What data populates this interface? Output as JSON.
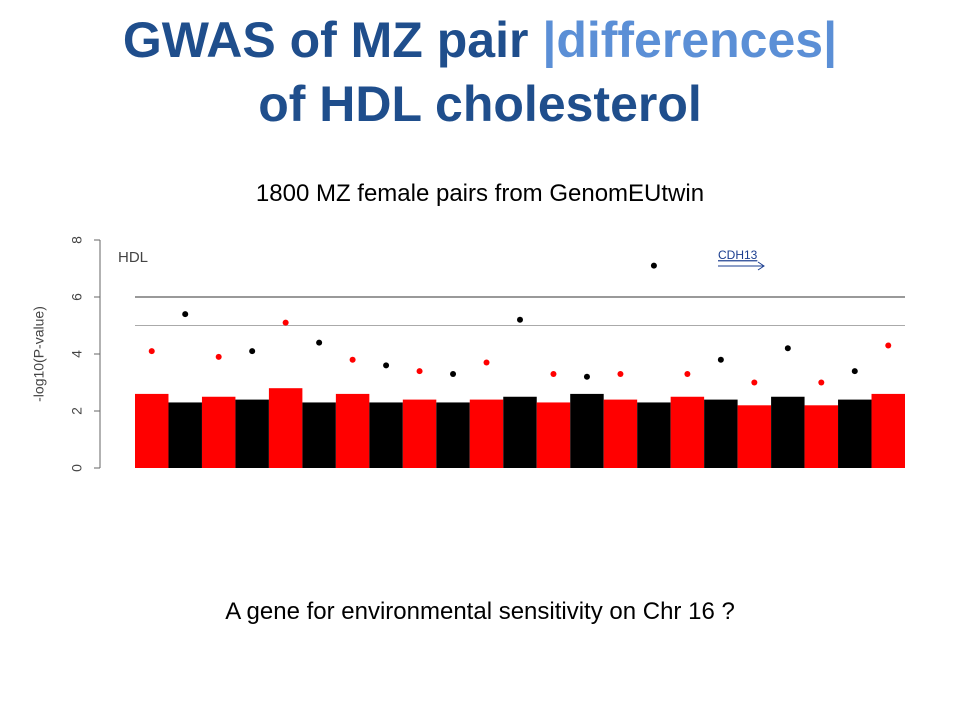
{
  "title": {
    "lines": [
      [
        "GWAS of MZ pair ",
        "|differences|"
      ],
      [
        "of HDL cholesterol"
      ]
    ]
  },
  "subtitle": "1800 MZ female pairs from GenomEUtwin",
  "caption": "A gene for environmental sensitivity on Chr 16 ?",
  "chart_data": {
    "type": "manhattan",
    "ylabel": "-log10(P-value)",
    "annotations": [
      "HDL",
      "CDH13"
    ],
    "ylim": [
      0,
      8
    ],
    "yticks": [
      0,
      2,
      4,
      6,
      8
    ],
    "hlines": [
      6,
      5
    ],
    "categories": [
      null,
      null,
      null,
      null,
      null,
      null,
      null,
      null,
      null,
      null,
      null,
      null,
      null,
      null,
      null,
      null,
      null,
      null,
      null,
      null,
      null,
      null,
      null
    ],
    "colors": [
      "#ff0000",
      "#000000"
    ],
    "values": [
      2.6,
      2.3,
      2.5,
      2.4,
      2.8,
      2.3,
      2.6,
      2.3,
      2.4,
      2.3,
      2.4,
      2.5,
      2.3,
      2.6,
      2.4,
      2.3,
      2.5,
      2.4,
      2.2,
      2.5,
      2.2,
      2.4,
      2.6
    ],
    "peaks": [
      4.1,
      5.4,
      3.9,
      4.1,
      5.1,
      4.4,
      3.8,
      3.6,
      3.4,
      3.3,
      3.7,
      5.2,
      3.3,
      3.2,
      3.3,
      7.1,
      3.3,
      3.8,
      3.0,
      4.2,
      3.0,
      3.4,
      4.3
    ]
  }
}
